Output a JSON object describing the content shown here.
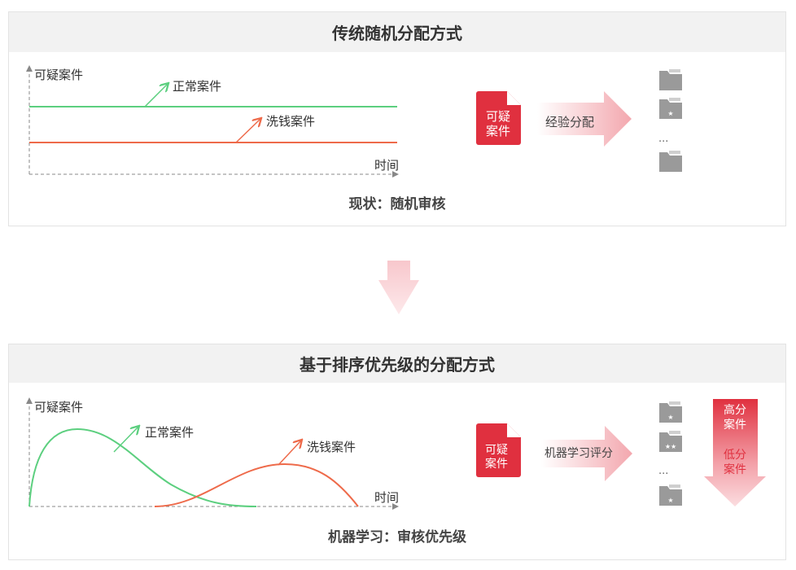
{
  "colors": {
    "red": "#e0303f",
    "green": "#5ccf7f",
    "orange": "#ee6a4a",
    "folder": "#9a9a9a",
    "header_bg": "#f2f2f2"
  },
  "top_panel": {
    "title": "传统随机分配方式",
    "y_axis_label": "可疑案件",
    "x_axis_label": "时间",
    "normal_label": "正常案件",
    "laundering_label": "洗钱案件",
    "caption": "现状：随机审核",
    "doc_line1": "可疑",
    "doc_line2": "案件",
    "arrow_label": "经验分配",
    "ellipsis": "...",
    "folders": [
      "folder-icon",
      "folder-star-icon",
      "folder-icon"
    ]
  },
  "bottom_panel": {
    "title": "基于排序优先级的分配方式",
    "y_axis_label": "可疑案件",
    "x_axis_label": "时间",
    "normal_label": "正常案件",
    "laundering_label": "洗钱案件",
    "caption": "机器学习：审核优先级",
    "doc_line1": "可疑",
    "doc_line2": "案件",
    "arrow_label": "机器学习评分",
    "ellipsis": "...",
    "folders": [
      "folder-star-icon",
      "folder-two-star-icon",
      "folder-star-icon"
    ],
    "high_line1": "高分",
    "high_line2": "案件",
    "low_line1": "低分",
    "low_line2": "案件"
  }
}
